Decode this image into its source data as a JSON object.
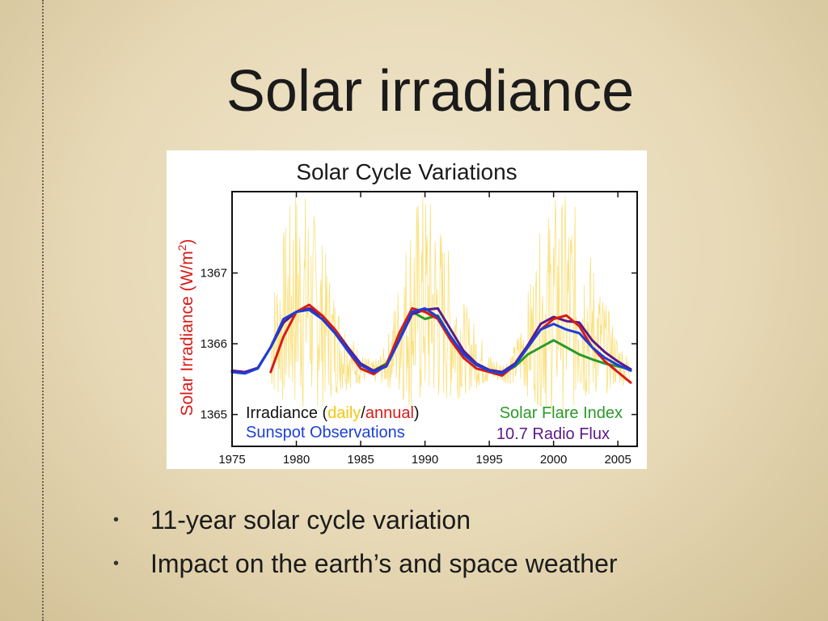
{
  "slide": {
    "title": "Solar irradiance",
    "bullets": [
      {
        "marker": "•",
        "text": "11-year solar cycle variation"
      },
      {
        "marker": "•",
        "text": "Impact on the earth’s and space weather"
      }
    ]
  },
  "colors": {
    "daily": "#f5c60e",
    "annual": "#d81b16",
    "sunspot": "#1c3fd8",
    "flare": "#2a9a2a",
    "radio": "#5a1a8a",
    "ylabel": "#d81b16"
  },
  "chart_data": {
    "type": "line",
    "title": "Solar Cycle Variations",
    "ylabel": {
      "main": "Solar Irradiance (W/m",
      "sup": "2",
      "close": ")"
    },
    "xlabel": "",
    "xlim": [
      1975,
      2006.5
    ],
    "ylim": [
      1364.55,
      1368.15
    ],
    "xticks": [
      1975,
      1980,
      1985,
      1990,
      1995,
      2000,
      2005
    ],
    "yticks": [
      1365,
      1366,
      1367
    ],
    "grid": false,
    "legend_position": "bottom",
    "legend": {
      "irradiance_prefix": "Irradiance (",
      "daily": "daily",
      "slash": "/",
      "annual": "annual",
      "irradiance_suffix": ")",
      "sunspot": "Sunspot Observations",
      "flare": "Solar Flare Index",
      "radio": "10.7 Radio Flux"
    },
    "series": [
      {
        "name": "daily",
        "x": [
          1978,
          1979,
          1980,
          1981,
          1982,
          1983,
          1984,
          1985,
          1986,
          1987,
          1988,
          1989,
          1990,
          1991,
          1992,
          1993,
          1994,
          1995,
          1996,
          1997,
          1998,
          1999,
          2000,
          2001,
          2002,
          2003,
          2004,
          2005,
          2006
        ],
        "y": [
          1365.95,
          1366.35,
          1366.65,
          1366.55,
          1366.3,
          1366.0,
          1365.8,
          1365.65,
          1365.6,
          1365.7,
          1366.1,
          1366.5,
          1366.6,
          1366.45,
          1366.2,
          1365.95,
          1365.8,
          1365.65,
          1365.6,
          1365.7,
          1366.0,
          1366.35,
          1366.55,
          1366.55,
          1366.45,
          1366.2,
          1365.95,
          1365.75,
          1365.6
        ]
      },
      {
        "name": "annual",
        "x": [
          1978,
          1979,
          1980,
          1981,
          1982,
          1983,
          1984,
          1985,
          1986,
          1987,
          1988,
          1989,
          1990,
          1991,
          1992,
          1993,
          1994,
          1995,
          1996,
          1997,
          1998,
          1999,
          2000,
          2001,
          2002,
          2003,
          2004,
          2005,
          2006
        ],
        "y": [
          1365.6,
          1366.1,
          1366.45,
          1366.55,
          1366.4,
          1366.2,
          1365.9,
          1365.65,
          1365.57,
          1365.7,
          1366.15,
          1366.5,
          1366.45,
          1366.35,
          1366.05,
          1365.8,
          1365.65,
          1365.6,
          1365.55,
          1365.7,
          1365.95,
          1366.2,
          1366.35,
          1366.4,
          1366.25,
          1365.95,
          1365.75,
          1365.6,
          1365.45
        ]
      },
      {
        "name": "Sunspot Observations",
        "x": [
          1975,
          1976,
          1977,
          1978,
          1979,
          1980,
          1981,
          1982,
          1983,
          1984,
          1985,
          1986,
          1987,
          1988,
          1989,
          1990,
          1991,
          1992,
          1993,
          1994,
          1995,
          1996,
          1997,
          1998,
          1999,
          2000,
          2001,
          2002,
          2003,
          2004,
          2005,
          2006
        ],
        "y": [
          1365.6,
          1365.58,
          1365.65,
          1365.95,
          1366.35,
          1366.45,
          1366.48,
          1366.35,
          1366.15,
          1365.9,
          1365.7,
          1365.6,
          1365.68,
          1366.05,
          1366.45,
          1366.5,
          1366.38,
          1366.1,
          1365.85,
          1365.7,
          1365.62,
          1365.58,
          1365.7,
          1365.95,
          1366.2,
          1366.28,
          1366.2,
          1366.15,
          1365.95,
          1365.8,
          1365.7,
          1365.62
        ]
      },
      {
        "name": "Solar Flare Index",
        "x": [
          1977,
          1978,
          1979,
          1980,
          1981,
          1982,
          1983,
          1984,
          1985,
          1986,
          1987,
          1988,
          1989,
          1990,
          1991,
          1992,
          1993,
          1994,
          1995,
          1996,
          1997,
          1998,
          1999,
          2000,
          2001,
          2002,
          2003,
          2004,
          2005,
          2006
        ],
        "y": [
          1365.65,
          1365.95,
          1366.3,
          1366.45,
          1366.48,
          1366.4,
          1366.2,
          1365.95,
          1365.7,
          1365.62,
          1365.72,
          1366.1,
          1366.45,
          1366.35,
          1366.4,
          1366.1,
          1365.85,
          1365.7,
          1365.62,
          1365.58,
          1365.68,
          1365.85,
          1365.95,
          1366.05,
          1365.95,
          1365.85,
          1365.78,
          1365.72,
          1365.68,
          1365.64
        ]
      },
      {
        "name": "10.7 Radio Flux",
        "x": [
          1975,
          1976,
          1977,
          1978,
          1979,
          1980,
          1981,
          1982,
          1983,
          1984,
          1985,
          1986,
          1987,
          1988,
          1989,
          1990,
          1991,
          1992,
          1993,
          1994,
          1995,
          1996,
          1997,
          1998,
          1999,
          2000,
          2001,
          2002,
          2003,
          2004,
          2005,
          2006
        ],
        "y": [
          1365.62,
          1365.6,
          1365.66,
          1365.95,
          1366.3,
          1366.45,
          1366.5,
          1366.4,
          1366.2,
          1365.95,
          1365.72,
          1365.62,
          1365.7,
          1366.05,
          1366.42,
          1366.48,
          1366.5,
          1366.2,
          1365.9,
          1365.72,
          1365.63,
          1365.6,
          1365.72,
          1365.98,
          1366.28,
          1366.38,
          1366.32,
          1366.3,
          1366.05,
          1365.88,
          1365.75,
          1365.64
        ]
      }
    ]
  }
}
